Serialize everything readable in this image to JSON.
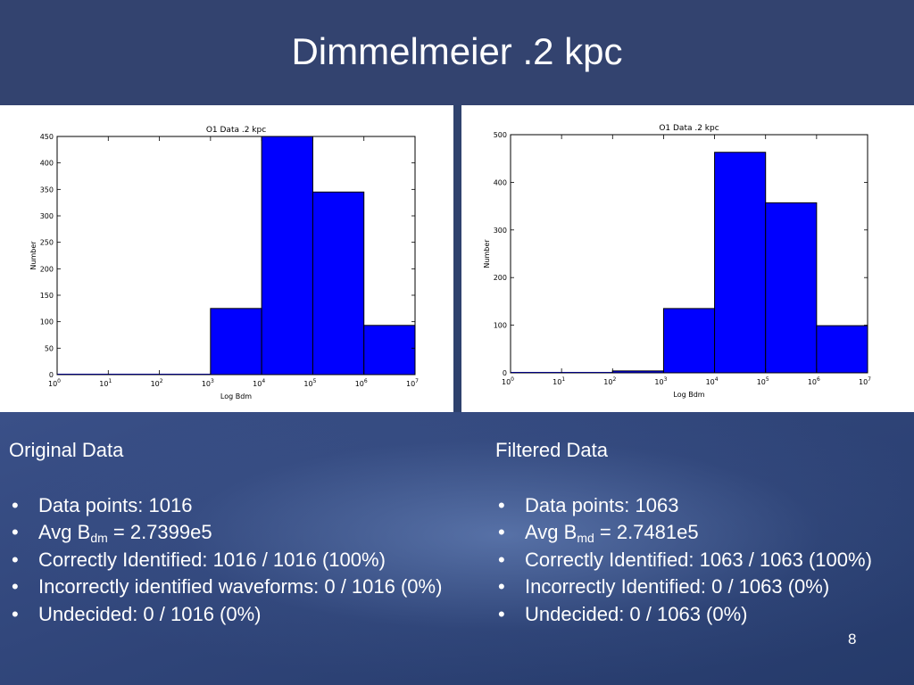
{
  "slide": {
    "title": "Dimmelmeier .2 kpc",
    "page_number": "8",
    "bar_color": "#0000ff"
  },
  "left": {
    "heading": "Original Data",
    "items": [
      {
        "text": "Data points: 1016"
      },
      {
        "pre": "Avg B",
        "sub": "dm",
        "post": " = 2.7399e5"
      },
      {
        "text": "Correctly Identified: 1016 / 1016 (100%)"
      },
      {
        "text": "Incorrectly identified waveforms: 0 / 1016 (0%)"
      },
      {
        "text": "Undecided: 0 / 1016 (0%)"
      }
    ]
  },
  "right": {
    "heading": "Filtered Data",
    "items": [
      {
        "text": "Data points: 1063"
      },
      {
        "pre": "Avg B",
        "sub": "md",
        "post": " = 2.7481e5"
      },
      {
        "text": "Correctly Identified: 1063 / 1063 (100%)"
      },
      {
        "text": "Incorrectly Identified: 0 / 1063 (0%)"
      },
      {
        "text": "Undecided: 0 / 1063 (0%)"
      }
    ]
  },
  "chart_data": [
    {
      "type": "bar",
      "title": "O1 Data .2 kpc",
      "xlabel": "Log Bdm",
      "ylabel": "Number",
      "xscale": "log",
      "xlim": [
        1,
        10000000
      ],
      "ylim": [
        0,
        450
      ],
      "yticks": [
        0,
        50,
        100,
        150,
        200,
        250,
        300,
        350,
        400,
        450
      ],
      "xtick_labels": [
        [
          "10",
          "0"
        ],
        [
          "10",
          "1"
        ],
        [
          "10",
          "2"
        ],
        [
          "10",
          "3"
        ],
        [
          "10",
          "4"
        ],
        [
          "10",
          "5"
        ],
        [
          "10",
          "6"
        ],
        [
          "10",
          "7"
        ]
      ],
      "bins": [
        [
          1,
          10
        ],
        [
          10,
          100
        ],
        [
          100,
          1000
        ],
        [
          1000,
          10000
        ],
        [
          10000,
          100000
        ],
        [
          100000,
          1000000
        ],
        [
          1000000,
          10000000
        ]
      ],
      "values": [
        0,
        0,
        0,
        125,
        450,
        345,
        93
      ]
    },
    {
      "type": "bar",
      "title": "O1 Data .2 kpc",
      "xlabel": "Log Bdm",
      "ylabel": "Number",
      "xscale": "log",
      "xlim": [
        1,
        10000000
      ],
      "ylim": [
        0,
        500
      ],
      "yticks": [
        0,
        100,
        200,
        300,
        400,
        500
      ],
      "xtick_labels": [
        [
          "10",
          "0"
        ],
        [
          "10",
          "1"
        ],
        [
          "10",
          "2"
        ],
        [
          "10",
          "3"
        ],
        [
          "10",
          "4"
        ],
        [
          "10",
          "5"
        ],
        [
          "10",
          "6"
        ],
        [
          "10",
          "7"
        ]
      ],
      "bins": [
        [
          1,
          10
        ],
        [
          10,
          100
        ],
        [
          100,
          1000
        ],
        [
          1000,
          10000
        ],
        [
          10000,
          100000
        ],
        [
          100000,
          1000000
        ],
        [
          1000000,
          10000000
        ]
      ],
      "values": [
        0,
        0,
        4,
        135,
        463,
        357,
        99
      ]
    }
  ]
}
